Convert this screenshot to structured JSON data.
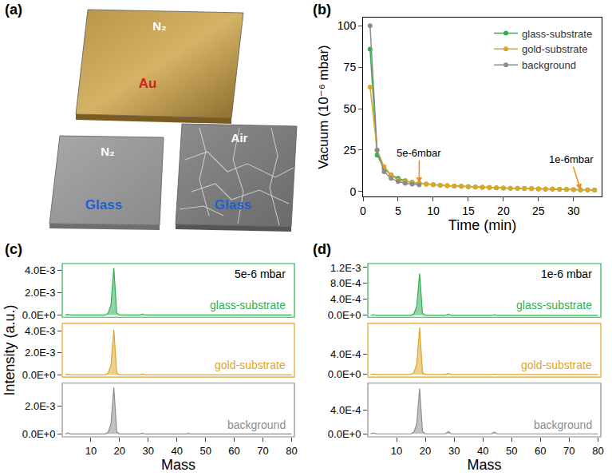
{
  "diagram": {
    "label": "(a)",
    "plates": [
      {
        "atmosphere": "N₂",
        "material": "Au",
        "color": "#d62020"
      },
      {
        "atmosphere": "N₂",
        "material": "Glass",
        "color": "#1f5fd6"
      },
      {
        "atmosphere": "Air",
        "material": "Glass",
        "color": "#1f5fd6"
      }
    ]
  },
  "chart_data": [
    {
      "label": "(b)",
      "type": "line",
      "marker": "circle",
      "x_label": "Time (min)",
      "y_label": "Vacuum (10⁻⁶ mbar)",
      "xlim": [
        0,
        34
      ],
      "ylim": [
        -3,
        105
      ],
      "xticks": [
        0,
        5,
        10,
        15,
        20,
        25,
        30
      ],
      "yticks": [
        0,
        25,
        50,
        75,
        100
      ],
      "legend": "upper right",
      "series": [
        {
          "name": "glass-substrate",
          "color": "#2fb04f",
          "x": [
            1,
            2,
            3,
            4,
            5,
            6,
            7,
            8,
            9,
            10,
            11,
            12,
            13,
            14,
            15,
            16,
            17,
            18,
            19,
            20,
            21,
            22,
            23,
            24,
            25,
            26,
            27,
            28,
            29,
            30,
            31,
            32,
            33
          ],
          "values": [
            86,
            22,
            14,
            10,
            8,
            6.5,
            5.5,
            5,
            4.5,
            4.1,
            3.8,
            3.5,
            3.3,
            3.1,
            2.9,
            2.7,
            2.5,
            2.4,
            2.2,
            2.1,
            2,
            1.9,
            1.8,
            1.7,
            1.6,
            1.5,
            1.4,
            1.3,
            1.2,
            1.1,
            1.0,
            0.95,
            0.9
          ]
        },
        {
          "name": "gold-substrate",
          "color": "#e0a526",
          "x": [
            1,
            2,
            3,
            4,
            5,
            6,
            7,
            8,
            9,
            10,
            11,
            12,
            13,
            14,
            15,
            16,
            17,
            18,
            19,
            20,
            21,
            22,
            23,
            24,
            25,
            26,
            27,
            28,
            29,
            30,
            31,
            32,
            33
          ],
          "values": [
            63,
            25,
            15,
            10,
            7,
            6,
            5.5,
            5,
            4.5,
            4.1,
            3.8,
            3.5,
            3.3,
            3.1,
            2.9,
            2.7,
            2.5,
            2.4,
            2.2,
            2.1,
            2,
            1.9,
            1.8,
            1.7,
            1.6,
            1.5,
            1.4,
            1.3,
            1.2,
            1.1,
            1.0,
            0.95,
            0.9
          ]
        },
        {
          "name": "background",
          "color": "#8c8c8c",
          "x": [
            1,
            2,
            3,
            4,
            5,
            6,
            7,
            8
          ],
          "values": [
            100,
            25,
            12,
            8,
            6,
            5,
            4.5,
            4
          ]
        }
      ],
      "annotations": [
        {
          "text": "5e-6mbar",
          "x": 8,
          "y": 5
        },
        {
          "text": "1e-6mbar",
          "x": 31,
          "y": 1
        }
      ]
    },
    {
      "label": "(c)",
      "type": "area",
      "x_label": "Mass",
      "y_label": "Intensity (a.u.)",
      "annotation": "5e-6 mbar",
      "xlim": [
        0,
        81
      ],
      "xticks": [
        10,
        20,
        30,
        40,
        50,
        60,
        70,
        80
      ],
      "x": [
        1,
        2,
        3,
        15,
        16,
        17,
        18,
        19,
        20,
        27,
        28,
        29,
        43,
        44,
        45,
        80
      ],
      "series": [
        {
          "name": "glass-substrate",
          "color": "#2fb04f",
          "values": [
            0,
            6e-05,
            0,
            0,
            0.00015,
            0.0009,
            0.0042,
            0.0002,
            0,
            0,
            8e-05,
            0,
            0,
            2e-05,
            0,
            0
          ],
          "ylim": [
            -0.0002,
            0.0046
          ],
          "yticks": [
            {
              "value": 0,
              "label": "0.0E+0"
            },
            {
              "value": 0.002,
              "label": "2.0E-3"
            },
            {
              "value": 0.004,
              "label": "4.0E-3"
            }
          ]
        },
        {
          "name": "gold-substrate",
          "color": "#e0a526",
          "values": [
            0,
            5e-05,
            0,
            0,
            0.00015,
            0.0009,
            0.0041,
            0.0002,
            0,
            0,
            7e-05,
            0,
            0,
            2e-05,
            0,
            0
          ],
          "ylim": [
            -0.0002,
            0.0047
          ],
          "yticks": [
            {
              "value": 0,
              "label": "0.0E+0"
            },
            {
              "value": 0.002,
              "label": "2.0E-3"
            },
            {
              "value": 0.004,
              "label": "4.0E-3"
            }
          ]
        },
        {
          "name": "background",
          "color": "#8c8c8c",
          "values": [
            0,
            8e-05,
            0,
            0,
            0.00012,
            0.0007,
            0.0033,
            0.00015,
            0,
            0,
            6e-05,
            0,
            0,
            3e-05,
            0,
            0
          ],
          "ylim": [
            -0.0002,
            0.0036
          ],
          "yticks": [
            {
              "value": 0,
              "label": "0.0E+0"
            },
            {
              "value": 0.002,
              "label": "2.0E-3"
            }
          ]
        }
      ]
    },
    {
      "label": "(d)",
      "type": "area",
      "x_label": "Mass",
      "y_label": "",
      "annotation": "1e-6 mbar",
      "xlim": [
        0,
        81
      ],
      "xticks": [
        10,
        20,
        30,
        40,
        50,
        60,
        70,
        80
      ],
      "x": [
        1,
        2,
        3,
        15,
        16,
        17,
        18,
        19,
        20,
        27,
        28,
        29,
        43,
        44,
        45,
        80
      ],
      "series": [
        {
          "name": "glass-substrate",
          "color": "#2fb04f",
          "values": [
            0,
            1.5e-05,
            0,
            0,
            4e-05,
            0.00022,
            0.00105,
            5e-05,
            0,
            0,
            3e-05,
            0,
            0,
            1.5e-05,
            0,
            0
          ],
          "ylim": [
            -5e-05,
            0.0013
          ],
          "yticks": [
            {
              "value": 0,
              "label": "0.0E+0"
            },
            {
              "value": 0.0004,
              "label": "4.0E-4"
            },
            {
              "value": 0.0008,
              "label": "8.0E-4"
            },
            {
              "value": 0.0012,
              "label": "1.2E-3"
            }
          ]
        },
        {
          "name": "gold-substrate",
          "color": "#e0a526",
          "values": [
            0,
            1e-05,
            0,
            0,
            4e-05,
            0.0002,
            0.00092,
            4e-05,
            0,
            0,
            2e-05,
            0,
            0,
            1e-05,
            0,
            0
          ],
          "ylim": [
            -5e-05,
            0.001
          ],
          "yticks": [
            {
              "value": 0,
              "label": "0.0E+0"
            },
            {
              "value": 0.0004,
              "label": "4.0E-4"
            }
          ]
        },
        {
          "name": "background",
          "color": "#8c8c8c",
          "values": [
            0,
            1.5e-05,
            0,
            0,
            3e-05,
            0.00016,
            0.00076,
            4e-05,
            0,
            0,
            4e-05,
            0,
            0,
            3e-05,
            0,
            0
          ],
          "ylim": [
            -5e-05,
            0.00085
          ],
          "yticks": [
            {
              "value": 0,
              "label": "0.0E+0"
            },
            {
              "value": 0.0004,
              "label": "4.0E-4"
            }
          ]
        }
      ]
    }
  ]
}
